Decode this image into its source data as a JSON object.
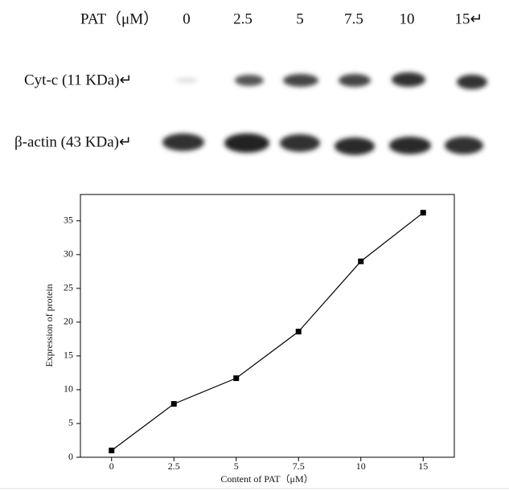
{
  "blot": {
    "header": "PAT（μM）",
    "lanes": [
      "0",
      "2.5",
      "5",
      "7.5",
      "10",
      "15↵"
    ],
    "rows": [
      "Cyt-c (11 KDa)↵",
      "β-actin (43 KDa)↵"
    ]
  },
  "chart_data": {
    "type": "line",
    "x_label": "Content of PAT（μM）",
    "y_label": "Expression of protein",
    "categories": [
      "0",
      "2.5",
      "5",
      "7.5",
      "10",
      "15"
    ],
    "values": [
      1,
      7.9,
      11.7,
      18.6,
      29.0,
      36.2
    ],
    "color": "#000000",
    "ylim": [
      0,
      38.9
    ],
    "yticks": [
      0,
      5,
      10,
      15,
      20,
      25,
      30,
      35
    ]
  }
}
